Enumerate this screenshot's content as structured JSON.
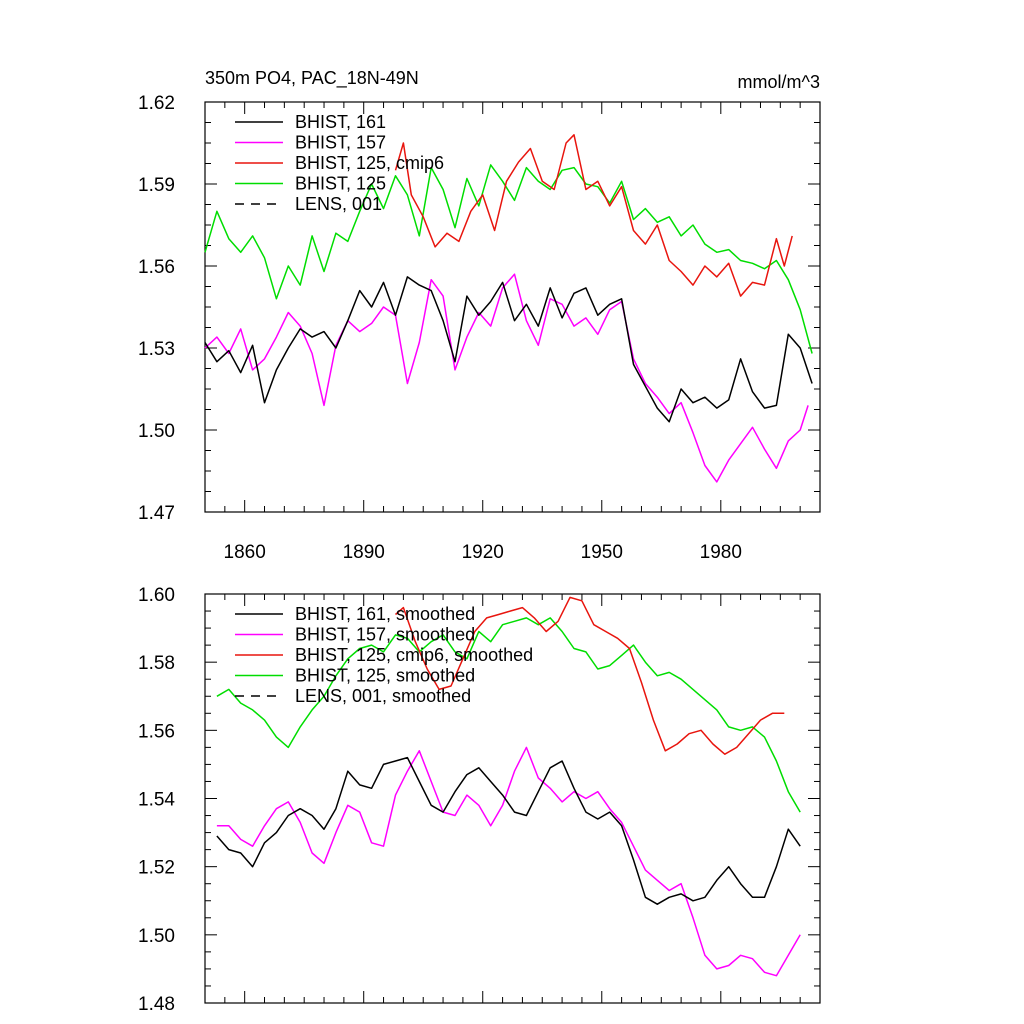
{
  "title": "350m PO4, PAC_18N-49N",
  "units": "mmol/m^3",
  "colors": {
    "black": "#000000",
    "magenta": "#ff00ff",
    "red": "#e8150e",
    "green": "#00dd00"
  },
  "chart_data": [
    {
      "type": "line",
      "xlim": [
        1850,
        2005
      ],
      "ylim": [
        1.47,
        1.62
      ],
      "xticks": [
        1860,
        1890,
        1920,
        1950,
        1980
      ],
      "xtick_labels": [
        "1860",
        "1890",
        "1920",
        "1950",
        "1980"
      ],
      "yticks": [
        1.47,
        1.5,
        1.53,
        1.56,
        1.59,
        1.62
      ],
      "ytick_labels": [
        "1.47",
        "1.50",
        "1.53",
        "1.56",
        "1.59",
        "1.62"
      ],
      "legend": [
        {
          "label": "BHIST, 161",
          "color": "#000000",
          "dash": false
        },
        {
          "label": "BHIST, 157",
          "color": "#ff00ff",
          "dash": false
        },
        {
          "label": "BHIST, 125, cmip6",
          "color": "#e8150e",
          "dash": false
        },
        {
          "label": "BHIST, 125",
          "color": "#00dd00",
          "dash": false
        },
        {
          "label": "LENS, 001",
          "color": "#000000",
          "dash": true
        }
      ],
      "series": [
        {
          "name": "BHIST, 125",
          "color": "#00dd00",
          "x": [
            1850,
            1853,
            1856,
            1859,
            1862,
            1865,
            1868,
            1871,
            1874,
            1877,
            1880,
            1883,
            1886,
            1889,
            1892,
            1895,
            1898,
            1901,
            1904,
            1907,
            1910,
            1913,
            1916,
            1919,
            1922,
            1925,
            1928,
            1931,
            1934,
            1937,
            1940,
            1943,
            1946,
            1949,
            1952,
            1955,
            1958,
            1961,
            1964,
            1967,
            1970,
            1973,
            1976,
            1979,
            1982,
            1985,
            1988,
            1991,
            1994,
            1997,
            2000,
            2003
          ],
          "y": [
            1.565,
            1.58,
            1.57,
            1.565,
            1.571,
            1.563,
            1.548,
            1.56,
            1.553,
            1.571,
            1.558,
            1.572,
            1.569,
            1.58,
            1.59,
            1.581,
            1.593,
            1.586,
            1.571,
            1.596,
            1.588,
            1.574,
            1.592,
            1.582,
            1.597,
            1.591,
            1.584,
            1.596,
            1.591,
            1.588,
            1.595,
            1.596,
            1.59,
            1.589,
            1.583,
            1.591,
            1.577,
            1.581,
            1.576,
            1.578,
            1.571,
            1.575,
            1.568,
            1.565,
            1.566,
            1.562,
            1.561,
            1.559,
            1.562,
            1.555,
            1.544,
            1.528
          ]
        },
        {
          "name": "BHIST, 125, cmip6",
          "color": "#e8150e",
          "x": [
            1898,
            1900,
            1902,
            1905,
            1908,
            1911,
            1914,
            1917,
            1920,
            1923,
            1926,
            1929,
            1932,
            1935,
            1938,
            1941,
            1943,
            1946,
            1949,
            1952,
            1955,
            1958,
            1961,
            1964,
            1967,
            1970,
            1973,
            1976,
            1979,
            1982,
            1985,
            1988,
            1991,
            1994,
            1996,
            1998
          ],
          "y": [
            1.595,
            1.605,
            1.586,
            1.578,
            1.567,
            1.572,
            1.569,
            1.58,
            1.586,
            1.573,
            1.591,
            1.598,
            1.603,
            1.591,
            1.588,
            1.605,
            1.608,
            1.588,
            1.591,
            1.582,
            1.589,
            1.573,
            1.568,
            1.575,
            1.562,
            1.558,
            1.553,
            1.56,
            1.556,
            1.561,
            1.549,
            1.554,
            1.553,
            1.57,
            1.56,
            1.571
          ]
        },
        {
          "name": "BHIST, 157",
          "color": "#ff00ff",
          "x": [
            1850,
            1853,
            1856,
            1859,
            1862,
            1865,
            1868,
            1871,
            1874,
            1877,
            1880,
            1883,
            1886,
            1889,
            1892,
            1895,
            1898,
            1901,
            1904,
            1907,
            1910,
            1913,
            1916,
            1919,
            1922,
            1925,
            1928,
            1931,
            1934,
            1937,
            1940,
            1943,
            1946,
            1949,
            1952,
            1955,
            1958,
            1961,
            1964,
            1967,
            1970,
            1973,
            1976,
            1979,
            1982,
            1985,
            1988,
            1991,
            1994,
            1997,
            2000,
            2002
          ],
          "y": [
            1.53,
            1.534,
            1.528,
            1.537,
            1.522,
            1.526,
            1.534,
            1.543,
            1.538,
            1.528,
            1.509,
            1.531,
            1.54,
            1.536,
            1.539,
            1.545,
            1.542,
            1.517,
            1.532,
            1.555,
            1.549,
            1.522,
            1.534,
            1.543,
            1.538,
            1.552,
            1.557,
            1.54,
            1.531,
            1.548,
            1.546,
            1.538,
            1.541,
            1.535,
            1.544,
            1.547,
            1.526,
            1.517,
            1.512,
            1.506,
            1.51,
            1.499,
            1.487,
            1.481,
            1.489,
            1.495,
            1.501,
            1.493,
            1.486,
            1.496,
            1.5,
            1.509
          ]
        },
        {
          "name": "BHIST, 161",
          "color": "#000000",
          "x": [
            1850,
            1853,
            1856,
            1859,
            1862,
            1865,
            1868,
            1871,
            1874,
            1877,
            1880,
            1883,
            1886,
            1889,
            1892,
            1895,
            1898,
            1901,
            1904,
            1907,
            1910,
            1913,
            1916,
            1919,
            1922,
            1925,
            1928,
            1931,
            1934,
            1937,
            1940,
            1943,
            1946,
            1949,
            1952,
            1955,
            1958,
            1961,
            1964,
            1967,
            1970,
            1973,
            1976,
            1979,
            1982,
            1985,
            1988,
            1991,
            1994,
            1997,
            2000,
            2003
          ],
          "y": [
            1.532,
            1.525,
            1.529,
            1.521,
            1.531,
            1.51,
            1.522,
            1.53,
            1.537,
            1.534,
            1.536,
            1.53,
            1.54,
            1.551,
            1.545,
            1.554,
            1.542,
            1.556,
            1.553,
            1.551,
            1.54,
            1.525,
            1.549,
            1.542,
            1.547,
            1.554,
            1.54,
            1.546,
            1.538,
            1.552,
            1.541,
            1.55,
            1.552,
            1.542,
            1.546,
            1.548,
            1.524,
            1.516,
            1.508,
            1.503,
            1.515,
            1.51,
            1.512,
            1.508,
            1.511,
            1.526,
            1.514,
            1.508,
            1.509,
            1.535,
            1.53,
            1.517
          ]
        }
      ]
    },
    {
      "type": "line",
      "xlim": [
        1850,
        2005
      ],
      "ylim": [
        1.48,
        1.6
      ],
      "xticks": [
        1860,
        1890,
        1920,
        1950,
        1980
      ],
      "yticks": [
        1.48,
        1.5,
        1.52,
        1.54,
        1.56,
        1.58,
        1.6
      ],
      "ytick_labels": [
        "1.48",
        "1.50",
        "1.52",
        "1.54",
        "1.56",
        "1.58",
        "1.60"
      ],
      "legend": [
        {
          "label": "BHIST, 161, smoothed",
          "color": "#000000",
          "dash": false
        },
        {
          "label": "BHIST, 157, smoothed",
          "color": "#ff00ff",
          "dash": false
        },
        {
          "label": "BHIST, 125, cmip6, smoothed",
          "color": "#e8150e",
          "dash": false
        },
        {
          "label": "BHIST, 125, smoothed",
          "color": "#00dd00",
          "dash": false
        },
        {
          "label": "LENS, 001, smoothed",
          "color": "#000000",
          "dash": true
        }
      ],
      "series": [
        {
          "name": "BHIST, 125, smoothed",
          "color": "#00dd00",
          "x": [
            1853,
            1856,
            1859,
            1862,
            1865,
            1868,
            1871,
            1874,
            1877,
            1880,
            1883,
            1886,
            1889,
            1892,
            1895,
            1898,
            1901,
            1904,
            1907,
            1910,
            1913,
            1916,
            1919,
            1922,
            1925,
            1928,
            1931,
            1934,
            1937,
            1940,
            1943,
            1946,
            1949,
            1952,
            1955,
            1958,
            1961,
            1964,
            1967,
            1970,
            1973,
            1976,
            1979,
            1982,
            1985,
            1988,
            1991,
            1994,
            1997,
            2000
          ],
          "y": [
            1.57,
            1.572,
            1.568,
            1.566,
            1.563,
            1.558,
            1.555,
            1.561,
            1.566,
            1.57,
            1.576,
            1.581,
            1.584,
            1.585,
            1.583,
            1.588,
            1.587,
            1.583,
            1.586,
            1.588,
            1.583,
            1.581,
            1.589,
            1.586,
            1.591,
            1.592,
            1.593,
            1.591,
            1.593,
            1.589,
            1.584,
            1.583,
            1.578,
            1.579,
            1.582,
            1.585,
            1.58,
            1.576,
            1.577,
            1.575,
            1.572,
            1.569,
            1.566,
            1.561,
            1.56,
            1.561,
            1.558,
            1.551,
            1.542,
            1.536
          ]
        },
        {
          "name": "BHIST, 125, cmip6, smoothed",
          "color": "#e8150e",
          "x": [
            1898,
            1900,
            1903,
            1906,
            1909,
            1912,
            1915,
            1918,
            1921,
            1924,
            1927,
            1930,
            1933,
            1936,
            1939,
            1942,
            1945,
            1948,
            1951,
            1954,
            1957,
            1960,
            1963,
            1966,
            1969,
            1972,
            1975,
            1978,
            1981,
            1984,
            1987,
            1990,
            1993,
            1996
          ],
          "y": [
            1.594,
            1.596,
            1.586,
            1.578,
            1.572,
            1.573,
            1.581,
            1.589,
            1.593,
            1.594,
            1.595,
            1.596,
            1.593,
            1.589,
            1.592,
            1.599,
            1.598,
            1.591,
            1.589,
            1.587,
            1.584,
            1.574,
            1.563,
            1.554,
            1.556,
            1.559,
            1.56,
            1.556,
            1.553,
            1.555,
            1.559,
            1.563,
            1.565,
            1.565
          ]
        },
        {
          "name": "BHIST, 157, smoothed",
          "color": "#ff00ff",
          "x": [
            1853,
            1856,
            1859,
            1862,
            1865,
            1868,
            1871,
            1874,
            1877,
            1880,
            1883,
            1886,
            1889,
            1892,
            1895,
            1898,
            1901,
            1904,
            1907,
            1910,
            1913,
            1916,
            1919,
            1922,
            1925,
            1928,
            1931,
            1934,
            1937,
            1940,
            1943,
            1946,
            1949,
            1952,
            1955,
            1958,
            1961,
            1964,
            1967,
            1970,
            1973,
            1976,
            1979,
            1982,
            1985,
            1988,
            1991,
            1994,
            1997,
            2000
          ],
          "y": [
            1.532,
            1.532,
            1.528,
            1.526,
            1.532,
            1.537,
            1.539,
            1.533,
            1.524,
            1.521,
            1.53,
            1.538,
            1.536,
            1.527,
            1.526,
            1.541,
            1.548,
            1.554,
            1.545,
            1.536,
            1.535,
            1.541,
            1.538,
            1.532,
            1.538,
            1.548,
            1.555,
            1.546,
            1.543,
            1.539,
            1.542,
            1.54,
            1.542,
            1.537,
            1.533,
            1.526,
            1.519,
            1.516,
            1.513,
            1.515,
            1.505,
            1.494,
            1.49,
            1.491,
            1.494,
            1.493,
            1.489,
            1.488,
            1.494,
            1.5
          ]
        },
        {
          "name": "BHIST, 161, smoothed",
          "color": "#000000",
          "x": [
            1853,
            1856,
            1859,
            1862,
            1865,
            1868,
            1871,
            1874,
            1877,
            1880,
            1883,
            1886,
            1889,
            1892,
            1895,
            1898,
            1901,
            1904,
            1907,
            1910,
            1913,
            1916,
            1919,
            1922,
            1925,
            1928,
            1931,
            1934,
            1937,
            1940,
            1943,
            1946,
            1949,
            1952,
            1955,
            1958,
            1961,
            1964,
            1967,
            1970,
            1973,
            1976,
            1979,
            1982,
            1985,
            1988,
            1991,
            1994,
            1997,
            2000
          ],
          "y": [
            1.529,
            1.525,
            1.524,
            1.52,
            1.527,
            1.53,
            1.535,
            1.537,
            1.535,
            1.531,
            1.537,
            1.548,
            1.544,
            1.543,
            1.55,
            1.551,
            1.552,
            1.545,
            1.538,
            1.536,
            1.542,
            1.547,
            1.549,
            1.545,
            1.541,
            1.536,
            1.535,
            1.542,
            1.549,
            1.551,
            1.543,
            1.536,
            1.534,
            1.536,
            1.532,
            1.522,
            1.511,
            1.509,
            1.511,
            1.512,
            1.51,
            1.511,
            1.516,
            1.52,
            1.515,
            1.511,
            1.511,
            1.52,
            1.531,
            1.526
          ]
        }
      ]
    }
  ]
}
